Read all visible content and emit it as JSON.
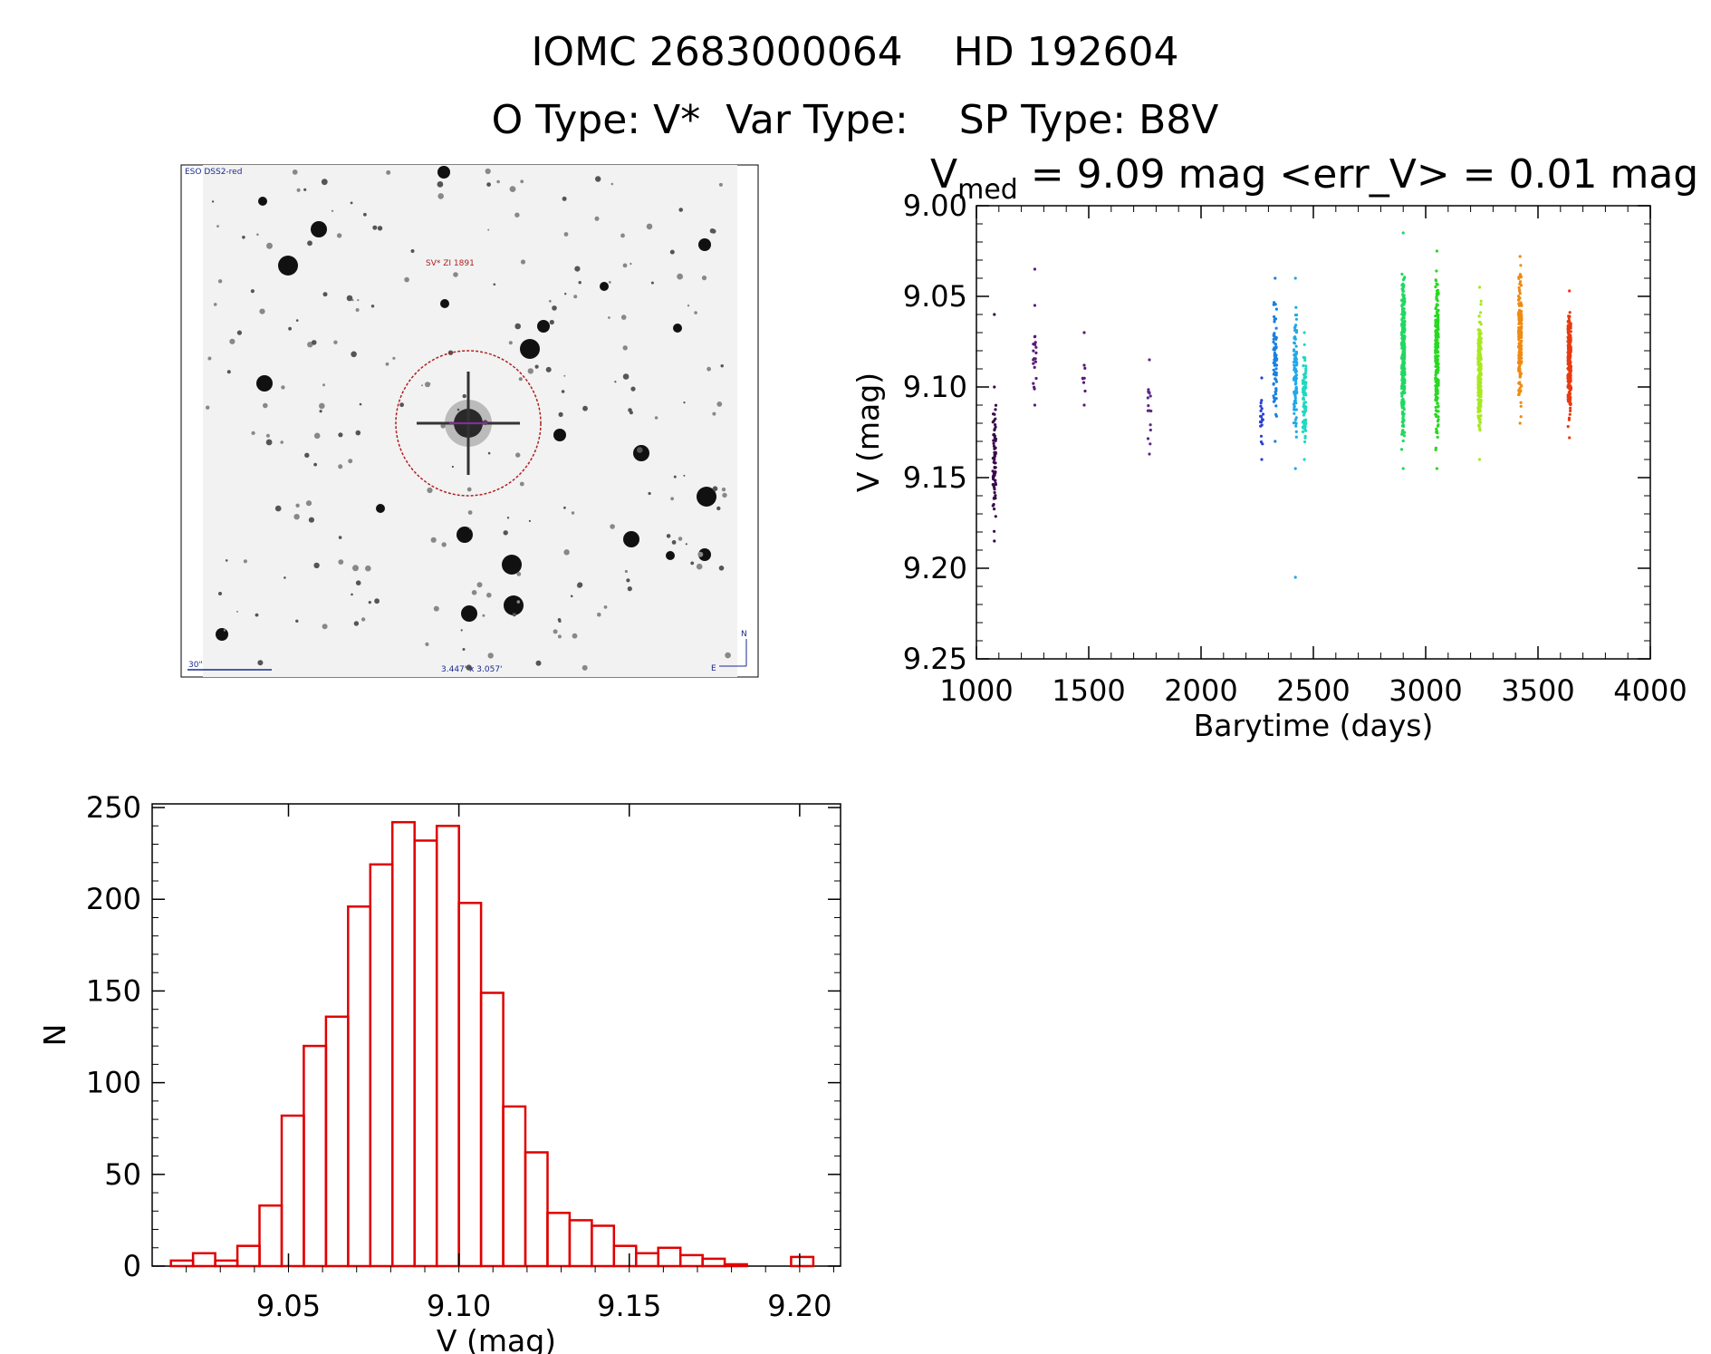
{
  "header": {
    "line1": "IOMC 2683000064    HD 192604",
    "line2": "O Type: V*  Var Type:    SP Type: B8V"
  },
  "thumbnail": {
    "survey_label": "ESO DSS2-red",
    "object_label": "SV* ZI 1891",
    "scale_label": "30\"",
    "fov_label": "3.447' x 3.057'",
    "north_label": "N",
    "east_label": "E",
    "circle_color": "#b02020"
  },
  "lightcurve": {
    "title_prefix": "V",
    "title_sub": "med",
    "title_rest": " = 9.09 mag <err_V> = 0.01 mag",
    "xlabel": "Barytime (days)",
    "ylabel": "V (mag)",
    "xticks": [
      "1000",
      "1500",
      "2000",
      "2500",
      "3000",
      "3500",
      "4000"
    ],
    "yticks": [
      "9.00",
      "9.05",
      "9.10",
      "9.15",
      "9.20",
      "9.25"
    ]
  },
  "histogram": {
    "xlabel": "V (mag)",
    "ylabel": "N",
    "xticks": [
      "9.05",
      "9.10",
      "9.15",
      "9.20"
    ],
    "yticks": [
      "250",
      "200",
      "150",
      "100",
      "50",
      "0"
    ],
    "bar_color": "#e00000"
  },
  "chart_data": [
    {
      "type": "scatter",
      "title": "Vmed = 9.09 mag <err_V> = 0.01 mag",
      "xlabel": "Barytime (days)",
      "ylabel": "V (mag)",
      "xlim": [
        1000,
        4000
      ],
      "ylim": [
        9.25,
        9.0
      ],
      "y_inverted": true,
      "grid": false,
      "series": [
        {
          "x_center": 1080,
          "y_min": 9.1,
          "y_max": 9.185,
          "color": "#3a0a4a",
          "n": 70,
          "extra_y": [
            9.06
          ]
        },
        {
          "x_center": 1260,
          "y_min": 9.055,
          "y_max": 9.11,
          "color": "#5a1a78",
          "n": 18,
          "extra_y": [
            9.035
          ]
        },
        {
          "x_center": 1480,
          "y_min": 9.088,
          "y_max": 9.11,
          "color": "#5a1a78",
          "n": 6,
          "extra_y": [
            9.07
          ]
        },
        {
          "x_center": 1770,
          "y_min": 9.085,
          "y_max": 9.137,
          "color": "#5a2a88",
          "n": 14,
          "extra_y": []
        },
        {
          "x_center": 2270,
          "y_min": 9.095,
          "y_max": 9.14,
          "color": "#2a40d0",
          "n": 18,
          "extra_y": []
        },
        {
          "x_center": 2330,
          "y_min": 9.04,
          "y_max": 9.13,
          "color": "#1a80e0",
          "n": 70,
          "extra_y": []
        },
        {
          "x_center": 2420,
          "y_min": 9.04,
          "y_max": 9.145,
          "color": "#20a8e8",
          "n": 90,
          "extra_y": [
            9.205
          ]
        },
        {
          "x_center": 2460,
          "y_min": 9.07,
          "y_max": 9.14,
          "color": "#20d8c0",
          "n": 90,
          "extra_y": []
        },
        {
          "x_center": 2900,
          "y_min": 9.015,
          "y_max": 9.145,
          "color": "#20d860",
          "n": 260,
          "extra_y": []
        },
        {
          "x_center": 3050,
          "y_min": 9.025,
          "y_max": 9.145,
          "color": "#28d820",
          "n": 220,
          "extra_y": []
        },
        {
          "x_center": 3240,
          "y_min": 9.045,
          "y_max": 9.14,
          "color": "#a8e820",
          "n": 240,
          "extra_y": []
        },
        {
          "x_center": 3420,
          "y_min": 9.028,
          "y_max": 9.12,
          "color": "#f08a10",
          "n": 200,
          "extra_y": []
        },
        {
          "x_center": 3640,
          "y_min": 9.047,
          "y_max": 9.128,
          "color": "#e83a10",
          "n": 240,
          "extra_y": []
        }
      ]
    },
    {
      "type": "bar",
      "title": "",
      "xlabel": "V (mag)",
      "ylabel": "N",
      "xlim": [
        9.01,
        9.212
      ],
      "ylim": [
        0,
        252
      ],
      "bin_width": 0.0065,
      "bin_starts": [
        9.0155,
        9.022,
        9.0285,
        9.035,
        9.0415,
        9.048,
        9.0545,
        9.061,
        9.0675,
        9.074,
        9.0805,
        9.087,
        9.0935,
        9.1,
        9.1065,
        9.113,
        9.1195,
        9.126,
        9.1325,
        9.139,
        9.1455,
        9.152,
        9.1585,
        9.165,
        9.1715,
        9.178,
        9.1845,
        9.191,
        9.1975,
        9.204
      ],
      "values": [
        3,
        7,
        3,
        11,
        33,
        82,
        120,
        136,
        196,
        219,
        242,
        232,
        240,
        198,
        149,
        87,
        62,
        29,
        25,
        22,
        11,
        7,
        10,
        6,
        4,
        1,
        0,
        0,
        5,
        0
      ]
    }
  ]
}
